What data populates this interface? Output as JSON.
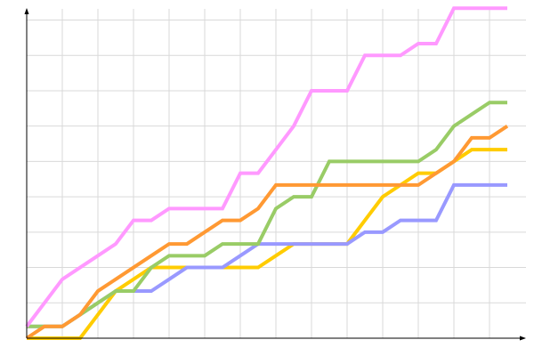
{
  "chart_data": {
    "type": "line",
    "title": "",
    "xlabel": "",
    "ylabel": "",
    "x": [
      0,
      1,
      2,
      3,
      4,
      5,
      6,
      7,
      8,
      9,
      10,
      11,
      12,
      13,
      14,
      15,
      16,
      17,
      18,
      19,
      20,
      21,
      22,
      23,
      24,
      25,
      26,
      27
    ],
    "xlim": [
      0,
      28
    ],
    "ylim": [
      0,
      28
    ],
    "grid": true,
    "grid_y_step": 3,
    "grid_x_step": 2,
    "legend": "none",
    "tick_labels": "none",
    "series": [
      {
        "color": "#ffcc00",
        "values": [
          0,
          0,
          0,
          0,
          2,
          4,
          5,
          6,
          6,
          6,
          6,
          6,
          6,
          6,
          7,
          8,
          8,
          8,
          8,
          10,
          12,
          13,
          14,
          14,
          15,
          16,
          16,
          16
        ]
      },
      {
        "color": "#9999ff",
        "values": [
          1,
          1,
          1,
          2,
          3,
          4,
          4,
          4,
          5,
          6,
          6,
          6,
          7,
          8,
          8,
          8,
          8,
          8,
          8,
          9,
          9,
          10,
          10,
          10,
          13,
          13,
          13,
          13
        ]
      },
      {
        "color": "#99cc66",
        "values": [
          1,
          1,
          1,
          2,
          3,
          4,
          4,
          6,
          7,
          7,
          7,
          8,
          8,
          8,
          11,
          12,
          12,
          15,
          15,
          15,
          15,
          15,
          15,
          16,
          18,
          19,
          20,
          20
        ]
      },
      {
        "color": "#ff9933",
        "values": [
          0,
          1,
          1,
          2,
          4,
          5,
          6,
          7,
          8,
          8,
          9,
          10,
          10,
          11,
          13,
          13,
          13,
          13,
          13,
          13,
          13,
          13,
          13,
          14,
          15,
          17,
          17,
          18
        ]
      },
      {
        "color": "#ff99ff",
        "values": [
          1,
          3,
          5,
          6,
          7,
          8,
          10,
          10,
          11,
          11,
          11,
          11,
          14,
          14,
          16,
          18,
          21,
          21,
          21,
          24,
          24,
          24,
          25,
          25,
          28,
          28,
          28,
          28
        ]
      }
    ]
  }
}
